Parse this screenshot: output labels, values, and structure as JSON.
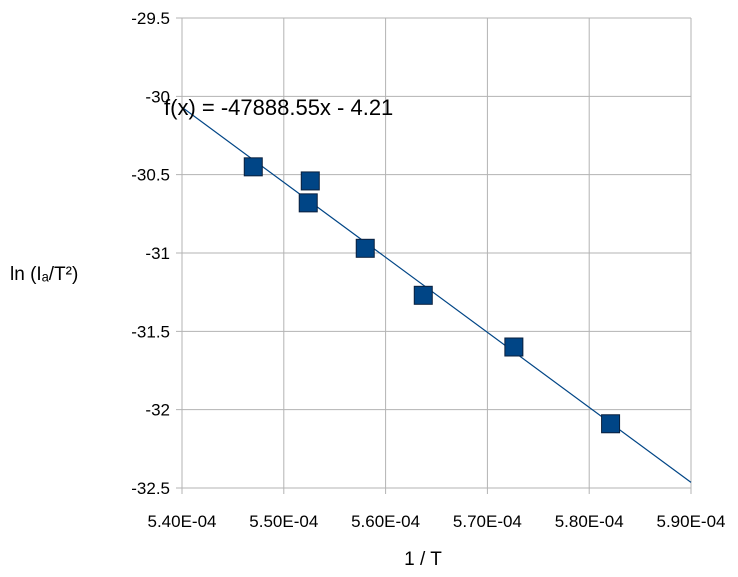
{
  "chart_data": {
    "type": "scatter",
    "title": "",
    "xlabel": "1 / T",
    "ylabel": "ln (Iₐ/T²)",
    "xlim": [
      0.00054,
      0.00059
    ],
    "ylim": [
      -32.5,
      -29.5
    ],
    "x_ticks": [
      0.00054,
      0.00055,
      0.00056,
      0.00057,
      0.00058,
      0.00059
    ],
    "x_tick_labels": [
      "5.40E-04",
      "5.50E-04",
      "5.60E-04",
      "5.70E-04",
      "5.80E-04",
      "5.90E-04"
    ],
    "y_ticks": [
      -29.5,
      -30,
      -30.5,
      -31,
      -31.5,
      -32,
      -32.5
    ],
    "y_tick_labels": [
      "-29.5",
      "-30",
      "-30.5",
      "-31",
      "-31.5",
      "-32",
      "-32.5"
    ],
    "grid": true,
    "series": [
      {
        "marker": "square",
        "color": "#004586",
        "x": [
          0.000547,
          0.0005526,
          0.0005524,
          0.000558,
          0.0005637,
          0.0005726,
          0.0005821
        ],
        "y": [
          -30.45,
          -30.54,
          -30.68,
          -30.97,
          -31.27,
          -31.6,
          -32.09
        ]
      }
    ],
    "trendline": {
      "slope": -47888.55,
      "intercept": -4.21,
      "color": "#004586",
      "label": "f(x) = -47888.55x - 4.21"
    },
    "colors": {
      "grid": "#b3b3b3",
      "marker": "#004586",
      "marker_border": "#0a1f3c",
      "line": "#004586"
    }
  }
}
